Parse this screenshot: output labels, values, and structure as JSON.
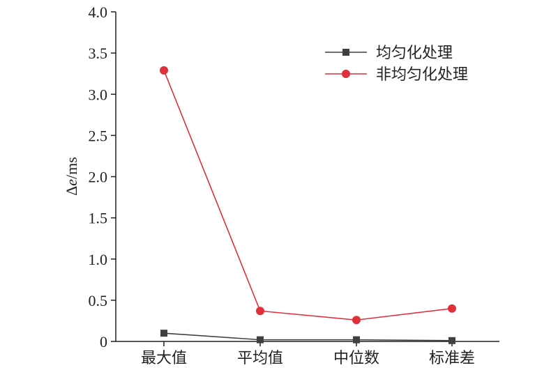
{
  "chart_data": {
    "type": "line",
    "categories": [
      "最大值",
      "平均值",
      "中位数",
      "标准差"
    ],
    "ylabel_prefix": "Δ",
    "ylabel_italic": "e",
    "ylabel_suffix": "/ms",
    "ylim": [
      0,
      4.0
    ],
    "yticks": [
      "0",
      "0.5",
      "1.0",
      "1.5",
      "2.0",
      "2.5",
      "3.0",
      "3.5",
      "4.0"
    ],
    "grid": false,
    "legend_position": "top-right",
    "series": [
      {
        "name": "均匀化处理",
        "values": [
          0.1,
          0.02,
          0.02,
          0.01
        ],
        "color": "#404040",
        "marker": "square"
      },
      {
        "name": "非均匀化处理",
        "values": [
          3.29,
          0.37,
          0.26,
          0.4
        ],
        "color": "#e0303c",
        "marker": "circle"
      }
    ]
  }
}
